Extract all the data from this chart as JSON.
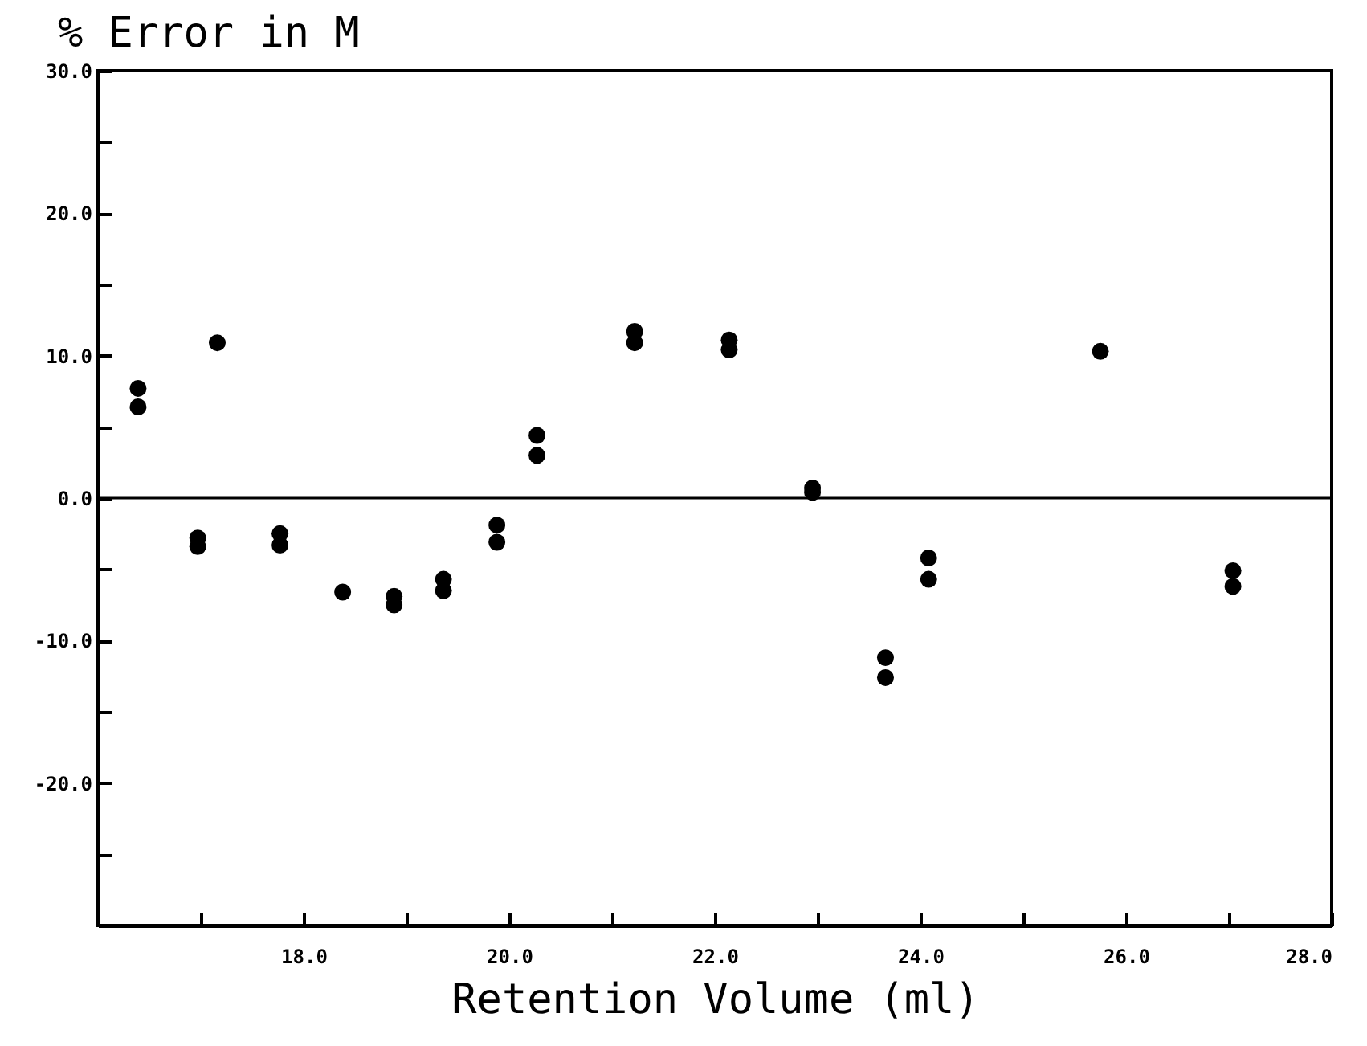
{
  "chart_data": {
    "type": "scatter",
    "title": "% Error in M",
    "xlabel": "Retention Volume  (ml)",
    "x": [
      16.39,
      16.39,
      16.97,
      16.97,
      17.16,
      17.77,
      17.77,
      18.38,
      18.88,
      18.88,
      19.36,
      19.36,
      19.88,
      19.88,
      20.27,
      20.27,
      21.22,
      21.22,
      22.14,
      22.14,
      22.95,
      22.95,
      23.66,
      23.66,
      24.08,
      24.08,
      25.75,
      27.04,
      27.04
    ],
    "series": [
      {
        "color": "#000000",
        "values": [
          7.7,
          6.4,
          -2.8,
          -3.4,
          10.9,
          -2.5,
          -3.3,
          -6.6,
          -6.9,
          -7.5,
          -5.7,
          -6.5,
          -1.9,
          -3.1,
          4.4,
          3.0,
          11.7,
          10.9,
          11.1,
          10.4,
          0.7,
          0.4,
          -11.2,
          -12.6,
          -4.2,
          -5.7,
          10.3,
          -5.1,
          -6.2
        ]
      }
    ],
    "xlim": [
      16,
      28
    ],
    "ylim": [
      -30,
      30
    ],
    "xticks": [
      {
        "value": 17,
        "label": null
      },
      {
        "value": 18,
        "label": "18.0"
      },
      {
        "value": 19,
        "label": null
      },
      {
        "value": 20,
        "label": "20.0"
      },
      {
        "value": 21,
        "label": null
      },
      {
        "value": 22,
        "label": "22.0"
      },
      {
        "value": 23,
        "label": null
      },
      {
        "value": 24,
        "label": "24.0"
      },
      {
        "value": 25,
        "label": null
      },
      {
        "value": 26,
        "label": "26.0"
      },
      {
        "value": 27,
        "label": null
      },
      {
        "value": 28,
        "label": "28.0"
      }
    ],
    "yticks": [
      {
        "value": -25,
        "label": null
      },
      {
        "value": -20,
        "label": "-20.0"
      },
      {
        "value": -15,
        "label": null
      },
      {
        "value": -10,
        "label": "-10.0"
      },
      {
        "value": -5,
        "label": null
      },
      {
        "value": 0,
        "label": "0.0"
      },
      {
        "value": 5,
        "label": null
      },
      {
        "value": 10,
        "label": "10.0"
      },
      {
        "value": 15,
        "label": null
      },
      {
        "value": 20,
        "label": "20.0"
      },
      {
        "value": 25,
        "label": null
      },
      {
        "value": 30,
        "label": "30.0"
      }
    ],
    "ref_lines": [
      {
        "axis": "y",
        "value": 0,
        "color": "#000000"
      }
    ],
    "marker": "circle",
    "grid": false
  }
}
